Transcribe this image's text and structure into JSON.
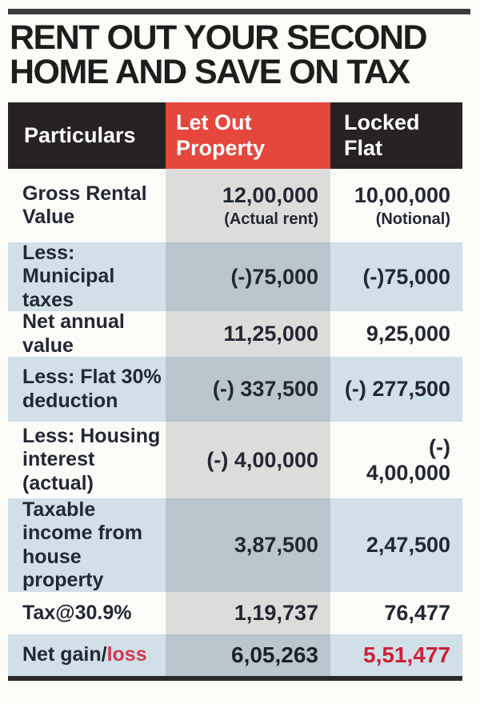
{
  "title": {
    "line1": "RENT OUT YOUR SECOND",
    "line2": "HOME AND SAVE ON TAX"
  },
  "table": {
    "header": [
      {
        "label": "Particulars"
      },
      {
        "label": "Let Out Property"
      },
      {
        "label": "Locked Flat"
      }
    ],
    "rows": [
      {
        "particulars": "Gross Rental Value",
        "let_out": "12,00,000",
        "let_out_note": "(Actual rent)",
        "locked_flat": "10,00,000",
        "locked_flat_note": "(Notional)"
      },
      {
        "particulars": "Less: Municipal taxes",
        "let_out": "(-)75,000",
        "locked_flat": "(-)75,000"
      },
      {
        "particulars": "Net annual value",
        "let_out": "11,25,000",
        "locked_flat": "9,25,000"
      },
      {
        "particulars": "Less: Flat 30% deduction",
        "let_out": "(-) 337,500",
        "locked_flat": "(-) 277,500"
      },
      {
        "particulars": "Less: Housing interest (actual)",
        "let_out": "(-) 4,00,000",
        "locked_flat": "(-)\n4,00,000"
      },
      {
        "particulars": "Taxable income from house property",
        "let_out": "3,87,500",
        "locked_flat": "2,47,500"
      },
      {
        "particulars": "Tax@30.9%",
        "let_out": "1,19,737",
        "locked_flat": "76,477"
      },
      {
        "particulars_dark": "Net gain/",
        "particulars_red": "loss",
        "let_out": "6,05,263",
        "locked_flat": "5,51,477"
      }
    ]
  },
  "colors": {
    "accent_red_header": "#e5473c",
    "header_black": "#272223",
    "blue_row": "#d0dfe8",
    "loss_label_red": "#d23750",
    "loss_value_red": "#cd1f35",
    "text_dark": "#232832"
  },
  "chart_data": {
    "type": "table",
    "title": "RENT OUT YOUR SECOND HOME AND SAVE ON TAX",
    "columns": [
      "Particulars",
      "Let Out Property",
      "Locked Flat"
    ],
    "rows": [
      [
        "Gross Rental Value",
        "12,00,000 (Actual rent)",
        "10,00,000 (Notional)"
      ],
      [
        "Less: Municipal taxes",
        "(-)75,000",
        "(-)75,000"
      ],
      [
        "Net annual value",
        "11,25,000",
        "9,25,000"
      ],
      [
        "Less: Flat 30% deduction",
        "(-) 337,500",
        "(-) 277,500"
      ],
      [
        "Less: Housing interest (actual)",
        "(-) 4,00,000",
        "(-) 4,00,000"
      ],
      [
        "Taxable income from house property",
        "3,87,500",
        "2,47,500"
      ],
      [
        "Tax@30.9%",
        "1,19,737",
        "76,477"
      ],
      [
        "Net gain/loss",
        "6,05,263",
        "5,51,477"
      ]
    ]
  }
}
